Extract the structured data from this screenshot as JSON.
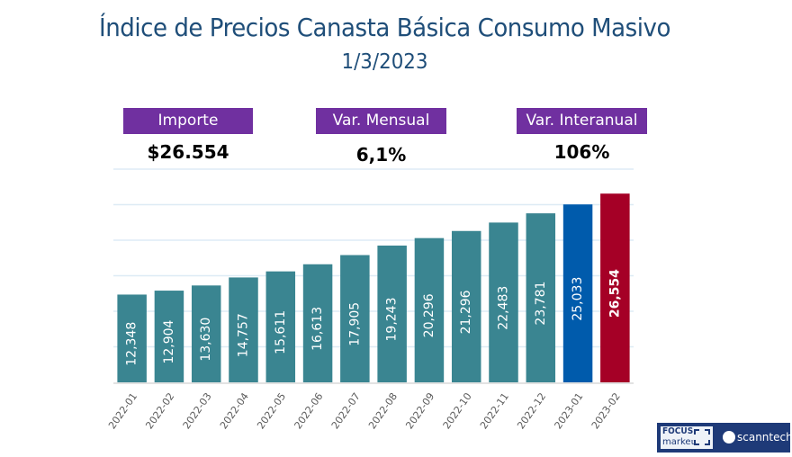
{
  "header": {
    "title": "Índice de Precios Canasta Básica Consumo Masivo",
    "date": "1/3/2023"
  },
  "kpis": [
    {
      "label": "Importe",
      "value": "$26.554"
    },
    {
      "label": "Var. Mensual",
      "value": "6,1%"
    },
    {
      "label": "Var. Interanual",
      "value": "106%"
    }
  ],
  "colors": {
    "title": "#1f4e79",
    "kpi_label_bg": "#7030a0",
    "bar_default": "#3a8591",
    "bar_previous": "#005bac",
    "bar_current": "#a50026",
    "gridline": "#ddebf5"
  },
  "logos": {
    "focus_line1": "FOCUS",
    "focus_line2": "market",
    "scanntech": "scanntech"
  },
  "chart_data": {
    "type": "bar",
    "title": "",
    "xlabel": "",
    "ylabel": "",
    "ylim": [
      0,
      30000
    ],
    "grid": true,
    "y_tick_step": 5000,
    "y_tick_labels_visible": false,
    "categories": [
      "2022-01",
      "2022-02",
      "2022-03",
      "2022-04",
      "2022-05",
      "2022-06",
      "2022-07",
      "2022-08",
      "2022-09",
      "2022-10",
      "2022-11",
      "2022-12",
      "2023-01",
      "2023-02"
    ],
    "values": [
      12348,
      12904,
      13630,
      14757,
      15611,
      16613,
      17905,
      19243,
      20296,
      21296,
      22483,
      23781,
      25033,
      26554
    ],
    "data_labels": [
      "12,348",
      "12,904",
      "13,630",
      "14,757",
      "15,611",
      "16,613",
      "17,905",
      "19,243",
      "20,296",
      "21,296",
      "22,483",
      "23,781",
      "25,033",
      "26,554"
    ],
    "bar_color_roles": [
      "default",
      "default",
      "default",
      "default",
      "default",
      "default",
      "default",
      "default",
      "default",
      "default",
      "default",
      "default",
      "previous",
      "current"
    ],
    "highlight_bold_label_index": 13
  }
}
